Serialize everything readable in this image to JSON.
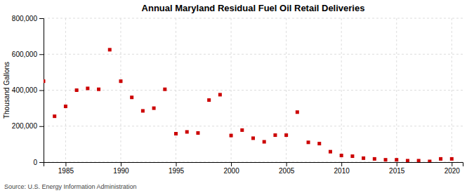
{
  "chart_data": {
    "type": "scatter",
    "title": "Annual Maryland Residual Fuel Oil Retail Deliveries",
    "ylabel": "Thousand Gallons",
    "annotations": [
      "Source: U.S. Energy Information Administration"
    ],
    "color": "#cc0000",
    "marker": "square",
    "grid": true,
    "xlim": [
      1983.0,
      2021.0
    ],
    "ylim": [
      0,
      800000
    ],
    "xticks": [
      1985,
      1990,
      1995,
      2000,
      2005,
      2010,
      2015,
      2020
    ],
    "yticks": [
      0,
      {
        "value": 200000,
        "label": "200,000"
      },
      {
        "value": 400000,
        "label": "400,000"
      },
      {
        "value": 600000,
        "label": "600,000"
      },
      {
        "value": 800000,
        "label": "800,000"
      }
    ],
    "x": [
      1983,
      1984,
      1985,
      1986,
      1987,
      1988,
      1989,
      1990,
      1991,
      1992,
      1993,
      1994,
      1995,
      1996,
      1997,
      1998,
      1999,
      2000,
      2001,
      2002,
      2003,
      2004,
      2005,
      2006,
      2007,
      2008,
      2009,
      2010,
      2011,
      2012,
      2013,
      2014,
      2015,
      2016,
      2017,
      2018,
      2019,
      2020
    ],
    "values": [
      450000,
      255000,
      310000,
      400000,
      410000,
      405000,
      625000,
      450000,
      360000,
      285000,
      300000,
      405000,
      158000,
      168000,
      162000,
      345000,
      375000,
      148000,
      178000,
      133000,
      113000,
      150000,
      150000,
      278000,
      110000,
      103000,
      58000,
      37000,
      33000,
      22000,
      18000,
      13000,
      13000,
      8000,
      8000,
      4000,
      18000,
      18000
    ]
  }
}
